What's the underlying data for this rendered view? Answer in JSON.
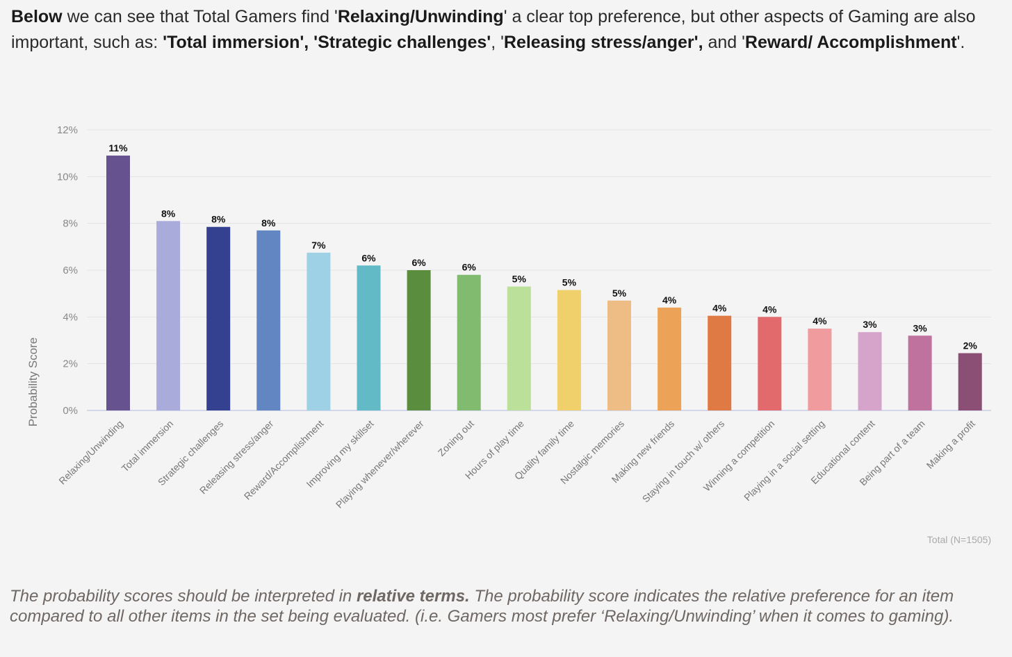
{
  "intro": {
    "p1_bold": "Below",
    "p2": " we can see that Total Gamers find '",
    "p3_bold": "Relaxing/Unwinding",
    "p4": "' a clear top preference, but other aspects of Gaming are also important, such as: ",
    "p5_bold": "'Total immersion', 'Strategic challenges'",
    "p6": ", '",
    "p7_bold": "Releasing stress/anger",
    "p8": "',",
    "p9": " and '",
    "p10_bold": "Reward/ Accomplishment",
    "p11": "'."
  },
  "footnote": {
    "f1": "The probability scores should be interpreted in ",
    "f2_bold": "relative terms.",
    "f3": " The probability score indicates the relative preference for an item compared to all other items in the set being evaluated. (i.e. Gamers most prefer ‘Relaxing/Unwinding’ when it comes to gaming)."
  },
  "chart_data": {
    "type": "bar",
    "title": "",
    "xlabel": "",
    "ylabel": "Probability Score",
    "ylim": [
      0,
      12
    ],
    "yticks": [
      "0%",
      "2%",
      "4%",
      "6%",
      "8%",
      "10%",
      "12%"
    ],
    "grid": true,
    "source_note": "Total (N=1505)",
    "categories": [
      "Relaxing/Unwinding",
      "Total immersion",
      "Strategic challenges",
      "Releasing stress/anger",
      "Reward/Accomplishment",
      "Improving my skillset",
      "Playing whenever/wherever",
      "Zoning out",
      "Hours of play time",
      "Quality family time",
      "Nostalgic memories",
      "Making new friends",
      "Staying in touch w/ others",
      "Winning a competition",
      "Playing in a social setting",
      "Educational content",
      "Being part of a team",
      "Making a profit"
    ],
    "values": [
      10.9,
      8.1,
      7.85,
      7.7,
      6.75,
      6.2,
      6.0,
      5.8,
      5.3,
      5.15,
      4.7,
      4.4,
      4.05,
      4.0,
      3.5,
      3.35,
      3.2,
      2.45
    ],
    "labels": [
      "11%",
      "8%",
      "8%",
      "8%",
      "7%",
      "6%",
      "6%",
      "6%",
      "5%",
      "5%",
      "5%",
      "4%",
      "4%",
      "4%",
      "4%",
      "3%",
      "3%",
      "2%"
    ],
    "colors": [
      "#65528f",
      "#a9acdb",
      "#344090",
      "#6186c2",
      "#9fd1e6",
      "#62bac6",
      "#5a8e3e",
      "#80bb70",
      "#bae09a",
      "#f0d06a",
      "#edbd85",
      "#eca357",
      "#df7a44",
      "#e26a6c",
      "#f09b9d",
      "#d6a4ca",
      "#c0729f",
      "#8b4f75"
    ]
  }
}
